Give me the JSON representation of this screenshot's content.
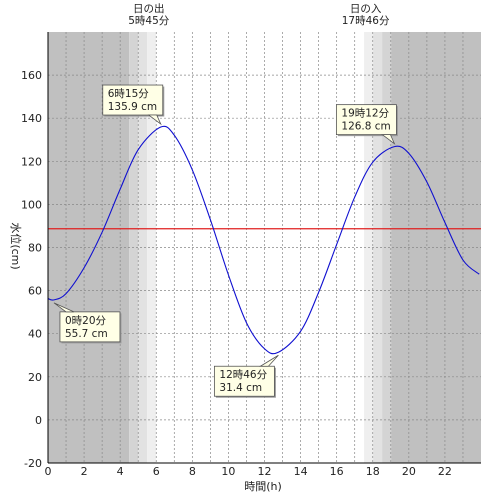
{
  "chart_data": {
    "type": "line",
    "xlabel": "時間(h)",
    "ylabel": "水位(cm)",
    "xlim": [
      0,
      24
    ],
    "ylim": [
      -20,
      180
    ],
    "x_ticks": [
      0,
      2,
      4,
      6,
      8,
      10,
      12,
      14,
      16,
      18,
      20,
      22
    ],
    "y_ticks": [
      -20,
      0,
      20,
      40,
      60,
      80,
      100,
      120,
      140,
      160
    ],
    "grid": true,
    "reference_line": {
      "value": 88.7,
      "color": "#e02020"
    },
    "sunrise": {
      "label": "日の出",
      "time_label": "5時45分",
      "hour": 5.75
    },
    "sunset": {
      "label": "日の入",
      "time_label": "17時46分",
      "hour": 17.77
    },
    "series": [
      {
        "color": "#1010d0",
        "x": [
          0,
          0.33,
          1,
          2,
          3,
          4,
          5,
          6.25,
          7,
          8,
          9,
          10,
          11,
          12,
          12.77,
          14,
          15,
          16,
          17,
          18,
          19.2,
          20,
          21,
          22,
          23,
          23.9
        ],
        "y": [
          56.3,
          55.7,
          58.6,
          70.6,
          87.1,
          107.1,
          125.4,
          135.9,
          132.1,
          116.0,
          92.9,
          67.3,
          45.1,
          33.0,
          31.4,
          41.1,
          59.2,
          81.4,
          103.4,
          119.6,
          126.8,
          123.7,
          110.4,
          91.6,
          74.2,
          67.6
        ]
      }
    ],
    "annotations": [
      {
        "time": "0時20分",
        "level": "55.7 cm",
        "x": 0.33,
        "y": 55.7
      },
      {
        "time": "6時15分",
        "level": "135.9 cm",
        "x": 6.25,
        "y": 135.9
      },
      {
        "time": "12時46分",
        "level": "31.4 cm",
        "x": 12.77,
        "y": 31.4
      },
      {
        "time": "19時12分",
        "level": "126.8 cm",
        "x": 19.2,
        "y": 126.8
      }
    ]
  },
  "colors": {
    "night": "#c0c0c0",
    "twilight_dark": "#d4d4d4",
    "twilight_mid": "#e2e2e2",
    "twilight_light": "#efefef",
    "day": "#ffffff",
    "callout_bg": "#ffffe6"
  }
}
